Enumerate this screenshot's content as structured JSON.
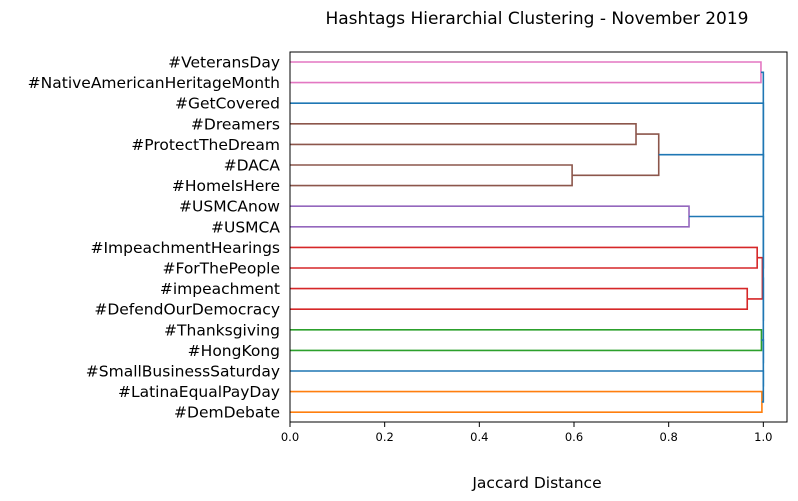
{
  "chart_data": {
    "type": "dendrogram",
    "orientation": "horizontal",
    "title": "Hashtags Hierarchial Clustering - November 2019",
    "xlabel": "Jaccard Distance",
    "xlim": [
      0,
      1.05
    ],
    "xticks": [
      "0.0",
      "0.2",
      "0.4",
      "0.6",
      "0.8",
      "1.0"
    ],
    "leaves": [
      "#VeteransDay",
      "#NativeAmericanHeritageMonth",
      "#GetCovered",
      "#Dreamers",
      "#ProtectTheDream",
      "#DACA",
      "#HomeIsHere",
      "#USMCAnow",
      "#USMCA",
      "#ImpeachmentHearings",
      "#ForThePeople",
      "#impeachment",
      "#DefendOurDemocracy",
      "#Thanksgiving",
      "#HongKong",
      "#SmallBusinessSaturday",
      "#LatinaEqualPayDay",
      "#DemDebate"
    ],
    "merges": [
      {
        "a": "#DemDebate",
        "b": "#LatinaEqualPayDay",
        "distance": 0.997,
        "color": "#ff7f0e"
      },
      {
        "a": "#HongKong",
        "b": "#Thanksgiving",
        "distance": 0.996,
        "color": "#2ca02c"
      },
      {
        "a": "#DefendOurDemocracy",
        "b": "#impeachment",
        "distance": 0.966,
        "color": "#d62728"
      },
      {
        "a": "#ForThePeople",
        "b": "#ImpeachmentHearings",
        "distance": 0.987,
        "color": "#d62728"
      },
      {
        "a": "{#ImpeachmentHearings, #ForThePeople}",
        "b": "{#impeachment, #DefendOurDemocracy}",
        "distance": 0.998,
        "color": "#d62728"
      },
      {
        "a": "#USMCA",
        "b": "#USMCAnow",
        "distance": 0.843,
        "color": "#9467bd"
      },
      {
        "a": "#HomeIsHere",
        "b": "#DACA",
        "distance": 0.596,
        "color": "#8c564b"
      },
      {
        "a": "#ProtectTheDream",
        "b": "#Dreamers",
        "distance": 0.731,
        "color": "#8c564b"
      },
      {
        "a": "{#Dreamers, #ProtectTheDream}",
        "b": "{#DACA, #HomeIsHere}",
        "distance": 0.779,
        "color": "#8c564b"
      },
      {
        "a": "#NativeAmericanHeritageMonth",
        "b": "#VeteransDay",
        "distance": 0.995,
        "color": "#e377c2"
      },
      {
        "a": "all clusters",
        "b": "",
        "distance": 1.0,
        "color": "#1f77b4"
      }
    ],
    "colors": {
      "above_threshold": "#1f77b4",
      "orange": "#ff7f0e",
      "green": "#2ca02c",
      "red": "#d62728",
      "purple": "#9467bd",
      "brown": "#8c564b",
      "pink": "#e377c2"
    }
  }
}
